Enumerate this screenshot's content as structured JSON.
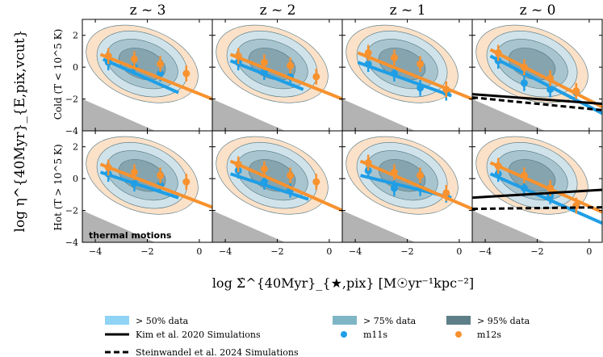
{
  "figure": {
    "column_titles": [
      "z ~ 3",
      "z ~ 2",
      "z ~ 1",
      "z ~ 0"
    ],
    "row_labels": [
      "Cold (T < 10^5 K)",
      "Hot (T > 10^5 K)"
    ],
    "ylabel": "log η^{40Myr}_{E,pix,vcut}",
    "xlabel": "log Σ̇^{40Myr}_{★,pix} [M☉yr⁻¹kpc⁻²]",
    "annotation": "thermal motions",
    "colors": {
      "m11s": "#1f9ee6",
      "m12s": "#f7922f",
      "m11s_fill": "#bfe4f8",
      "m12s_fill": "#f9d7b6",
      "dark_fill": "#5a7d86",
      "mid_fill": "#7fa8b3",
      "excluded_region": "#b3b3b3",
      "kim": "#000000",
      "steinwandel": "#000000"
    }
  },
  "legend": {
    "items": [
      {
        "label": "> 50% data",
        "kind": "patch-light"
      },
      {
        "label": "> 75% data",
        "kind": "patch-mid"
      },
      {
        "label": "> 95% data",
        "kind": "patch-dark"
      },
      {
        "label": "Kim et al. 2020 Simulations",
        "kind": "solid-line"
      },
      {
        "label": "m11s",
        "kind": "blue-dot"
      },
      {
        "label": "m12s",
        "kind": "orange-dot"
      },
      {
        "label": "Steinwandel et al. 2024 Simulations",
        "kind": "dashed-line"
      }
    ]
  },
  "chart_data": [
    {
      "type": "scatter",
      "title": "z ~ 3",
      "row": "Cold (T < 10^5 K)",
      "xlim": [
        -4.5,
        0.5
      ],
      "ylim": [
        -4,
        3
      ],
      "yticks": [
        -4,
        -2,
        0,
        2
      ],
      "series": [
        {
          "name": "m11s",
          "x": [
            -3.5,
            -2.5,
            -1.5
          ],
          "y": [
            0.3,
            0.0,
            -0.4
          ],
          "fit": [
            [
              -3.7,
              0.5
            ],
            [
              -0.8,
              -1.6
            ]
          ]
        },
        {
          "name": "m12s",
          "x": [
            -3.5,
            -2.5,
            -1.5,
            -0.5
          ],
          "y": [
            0.7,
            0.5,
            0.2,
            -0.4
          ],
          "fit": [
            [
              -3.8,
              0.8
            ],
            [
              0.5,
              -2.0
            ]
          ]
        }
      ]
    },
    {
      "type": "scatter",
      "title": "z ~ 2",
      "row": "Cold (T < 10^5 K)",
      "xlim": [
        -4.5,
        0.5
      ],
      "ylim": [
        -4,
        3
      ],
      "yticks": [
        -4,
        -2,
        0,
        2
      ],
      "series": [
        {
          "name": "m11s",
          "x": [
            -3.5,
            -2.5,
            -1.5
          ],
          "y": [
            0.3,
            -0.3,
            -0.6
          ],
          "fit": [
            [
              -3.8,
              0.4
            ],
            [
              -1.0,
              -1.4
            ]
          ]
        },
        {
          "name": "m12s",
          "x": [
            -3.5,
            -2.5,
            -1.5,
            -0.5
          ],
          "y": [
            0.7,
            0.3,
            0.1,
            -0.6
          ],
          "fit": [
            [
              -3.8,
              0.8
            ],
            [
              0.5,
              -2.0
            ]
          ]
        }
      ]
    },
    {
      "type": "scatter",
      "title": "z ~ 1",
      "row": "Cold (T < 10^5 K)",
      "xlim": [
        -4.5,
        0.5
      ],
      "ylim": [
        -4,
        3
      ],
      "yticks": [
        -4,
        -2,
        0,
        2
      ],
      "series": [
        {
          "name": "m11s",
          "x": [
            -3.5,
            -2.5,
            -1.5,
            -0.5
          ],
          "y": [
            0.2,
            -0.4,
            -1.3,
            -1.6
          ],
          "fit": [
            [
              -3.9,
              0.3
            ],
            [
              -0.3,
              -1.8
            ]
          ]
        },
        {
          "name": "m12s",
          "x": [
            -3.5,
            -2.5,
            -1.5,
            -0.5
          ],
          "y": [
            0.9,
            0.6,
            0.2,
            -1.4
          ],
          "fit": [
            [
              -3.9,
              0.9
            ],
            [
              0.5,
              -2.0
            ]
          ]
        }
      ]
    },
    {
      "type": "scatter",
      "title": "z ~ 0",
      "row": "Cold (T < 10^5 K)",
      "xlim": [
        -4.5,
        0.5
      ],
      "ylim": [
        -4,
        3
      ],
      "yticks": [
        -4,
        -2,
        0,
        2
      ],
      "series": [
        {
          "name": "m11s",
          "x": [
            -3.5,
            -2.5,
            -1.5,
            -0.5
          ],
          "y": [
            0.4,
            -1.0,
            -1.4,
            -1.6
          ],
          "fit": [
            [
              -3.8,
              0.7
            ],
            [
              0.5,
              -2.9
            ]
          ]
        },
        {
          "name": "m12s",
          "x": [
            -3.5,
            -2.5,
            -1.5,
            -0.5
          ],
          "y": [
            0.9,
            0.0,
            -0.7,
            -1.5
          ],
          "fit": [
            [
              -3.8,
              1.1
            ],
            [
              0.5,
              -2.5
            ]
          ]
        },
        {
          "name": "Kim et al. 2020 Simulations",
          "line": "solid",
          "fit": [
            [
              -4.5,
              -1.7
            ],
            [
              0.5,
              -2.3
            ]
          ]
        },
        {
          "name": "Steinwandel et al. 2024 Simulations",
          "line": "dashed",
          "fit": [
            [
              -4.5,
              -1.9
            ],
            [
              0.5,
              -2.7
            ]
          ]
        }
      ]
    },
    {
      "type": "scatter",
      "title": "z ~ 3",
      "row": "Hot (T > 10^5 K)",
      "xlim": [
        -4.5,
        0.5
      ],
      "ylim": [
        -4,
        3
      ],
      "yticks": [
        -4,
        -2,
        0,
        2
      ],
      "series": [
        {
          "name": "m11s",
          "x": [
            -3.5,
            -2.5,
            -1.5
          ],
          "y": [
            0.3,
            -0.3,
            -0.4
          ],
          "fit": [
            [
              -3.8,
              0.4
            ],
            [
              -0.8,
              -1.2
            ]
          ]
        },
        {
          "name": "m12s",
          "x": [
            -3.5,
            -2.5,
            -1.5,
            -0.5
          ],
          "y": [
            0.7,
            0.4,
            0.2,
            -0.2
          ],
          "fit": [
            [
              -3.8,
              0.9
            ],
            [
              0.5,
              -1.8
            ]
          ]
        }
      ]
    },
    {
      "type": "scatter",
      "title": "z ~ 2",
      "row": "Hot (T > 10^5 K)",
      "xlim": [
        -4.5,
        0.5
      ],
      "ylim": [
        -4,
        3
      ],
      "yticks": [
        -4,
        -2,
        0,
        2
      ],
      "series": [
        {
          "name": "m11s",
          "x": [
            -3.5,
            -2.5,
            -1.5
          ],
          "y": [
            0.5,
            -0.2,
            -0.7
          ],
          "fit": [
            [
              -3.8,
              0.3
            ],
            [
              -0.8,
              -1.3
            ]
          ]
        },
        {
          "name": "m12s",
          "x": [
            -3.5,
            -2.5,
            -1.5,
            -0.5
          ],
          "y": [
            0.9,
            0.6,
            0.2,
            -0.2
          ],
          "fit": [
            [
              -3.8,
              1.1
            ],
            [
              0.5,
              -2.0
            ]
          ]
        }
      ]
    },
    {
      "type": "scatter",
      "title": "z ~ 1",
      "row": "Hot (T > 10^5 K)",
      "xlim": [
        -4.5,
        0.5
      ],
      "ylim": [
        -4,
        3
      ],
      "yticks": [
        -4,
        -2,
        0,
        2
      ],
      "series": [
        {
          "name": "m11s",
          "x": [
            -3.5,
            -2.5,
            -1.5,
            -0.5
          ],
          "y": [
            0.5,
            -0.6,
            -0.6,
            -1.0
          ],
          "fit": [
            [
              -3.8,
              0.2
            ],
            [
              -0.3,
              -1.2
            ]
          ]
        },
        {
          "name": "m12s",
          "x": [
            -3.5,
            -2.5,
            -1.5,
            -0.5
          ],
          "y": [
            1.0,
            0.4,
            0.2,
            -0.9
          ],
          "fit": [
            [
              -3.8,
              1.1
            ],
            [
              0.5,
              -1.9
            ]
          ]
        }
      ]
    },
    {
      "type": "scatter",
      "title": "z ~ 0",
      "row": "Hot (T > 10^5 K)",
      "xlim": [
        -4.5,
        0.5
      ],
      "ylim": [
        -4,
        3
      ],
      "yticks": [
        -4,
        -2,
        0,
        2
      ],
      "series": [
        {
          "name": "m11s",
          "x": [
            -3.5,
            -2.5,
            -1.5,
            -0.5
          ],
          "y": [
            0.3,
            -0.6,
            -1.1,
            -1.7
          ],
          "fit": [
            [
              -3.8,
              0.3
            ],
            [
              0.5,
              -2.8
            ]
          ]
        },
        {
          "name": "m12s",
          "x": [
            -3.5,
            -2.5,
            -1.5,
            -0.5
          ],
          "y": [
            0.8,
            0.2,
            -0.6,
            -1.7
          ],
          "fit": [
            [
              -3.8,
              1.0
            ],
            [
              0.5,
              -2.1
            ]
          ]
        },
        {
          "name": "Kim et al. 2020 Simulations",
          "line": "solid",
          "fit": [
            [
              -4.5,
              -1.2
            ],
            [
              0.5,
              -0.7
            ]
          ]
        },
        {
          "name": "Steinwandel et al. 2024 Simulations",
          "line": "dashed",
          "fit": [
            [
              -4.5,
              -1.9
            ],
            [
              0.5,
              -1.8
            ]
          ]
        }
      ]
    }
  ]
}
